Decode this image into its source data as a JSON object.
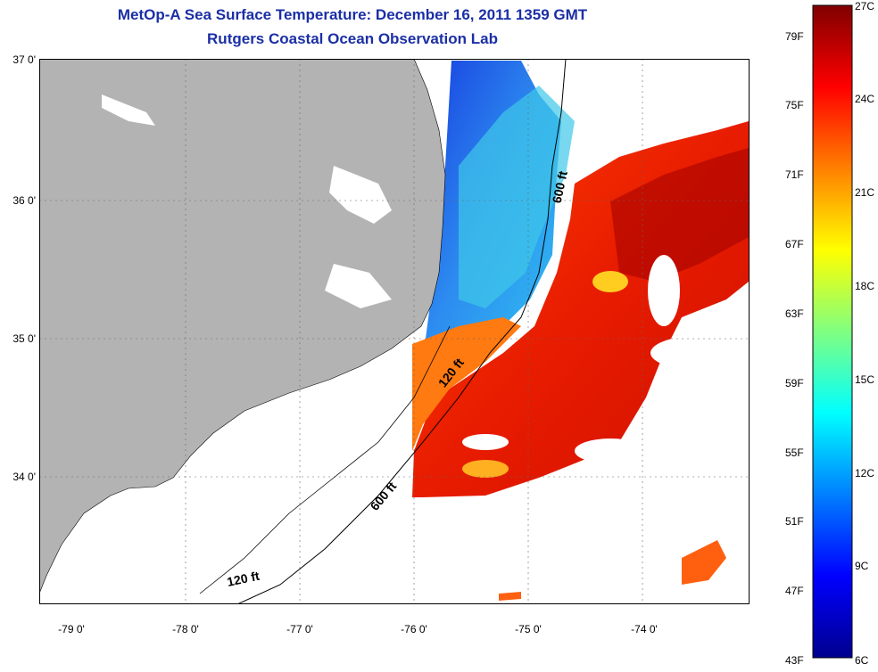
{
  "title": {
    "line1": "MetOp-A Sea Surface Temperature:  December 16, 2011 1359 GMT",
    "line2": "Rutgers Coastal Ocean Observation Lab"
  },
  "axes": {
    "latitude_labels": [
      "37 0'",
      "36 0'",
      "35 0'",
      "34 0'"
    ],
    "longitude_labels": [
      "-79 0'",
      "-78 0'",
      "-77 0'",
      "-76 0'",
      "-75 0'",
      "-74 0'"
    ]
  },
  "contours": {
    "label_600_upper": "600 ft",
    "label_120_mid": "120 ft",
    "label_600_lower": "600 ft",
    "label_120_lower": "120 ft"
  },
  "colorbar": {
    "fahrenheit": [
      "79F",
      "75F",
      "71F",
      "67F",
      "63F",
      "59F",
      "55F",
      "51F",
      "47F",
      "43F"
    ],
    "celsius": [
      "27C",
      "24C",
      "21C",
      "18C",
      "15C",
      "12C",
      "9C",
      "6C"
    ]
  },
  "colors": {
    "land": "#b3b3b3",
    "title": "#1b2fa6",
    "cold": "#00008f",
    "warm": "#800000"
  }
}
